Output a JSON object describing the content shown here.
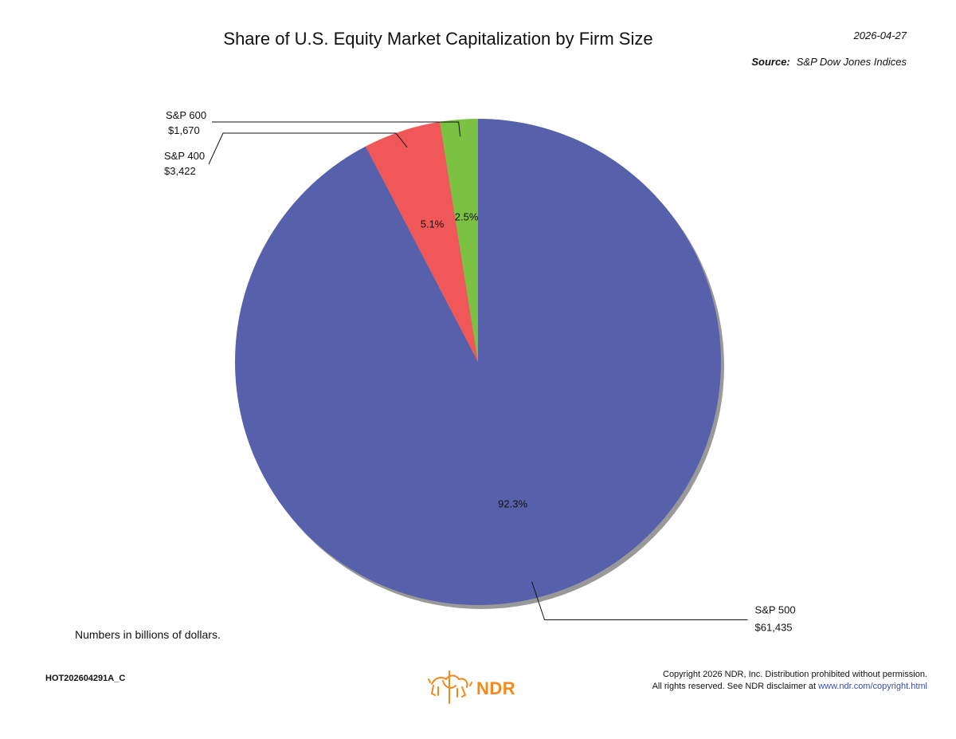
{
  "header": {
    "title": "Share of U.S. Equity Market Capitalization by Firm Size",
    "date": "2026-04-27",
    "source_label": "Source:",
    "source_value": "S&P Dow Jones Indices"
  },
  "chart_data": {
    "type": "pie",
    "title": "Share of U.S. Equity Market Capitalization by Firm Size",
    "units": "Numbers in billions of dollars.",
    "slices": [
      {
        "name": "S&P 500",
        "value": 61435,
        "value_label": "$61,435",
        "percent": 92.3,
        "percent_label": "92.3%",
        "color": "#5760ab"
      },
      {
        "name": "S&P 400",
        "value": 3422,
        "value_label": "$3,422",
        "percent": 5.1,
        "percent_label": "5.1%",
        "color": "#ef5759"
      },
      {
        "name": "S&P 600",
        "value": 1670,
        "value_label": "$1,670",
        "percent": 2.5,
        "percent_label": "2.5%",
        "color": "#7cc242"
      }
    ],
    "shadow_color": "#999999"
  },
  "footer": {
    "note": "Numbers in billions of dollars.",
    "chart_id": "HOT202604291A_C",
    "logo_text": "NDR",
    "copyright_line1": "Copyright 2026 NDR, Inc. Distribution prohibited without permission.",
    "copyright_line2_prefix": "All rights reserved. See NDR disclaimer at",
    "copyright_link": "www.ndr.com/copyright.html"
  }
}
